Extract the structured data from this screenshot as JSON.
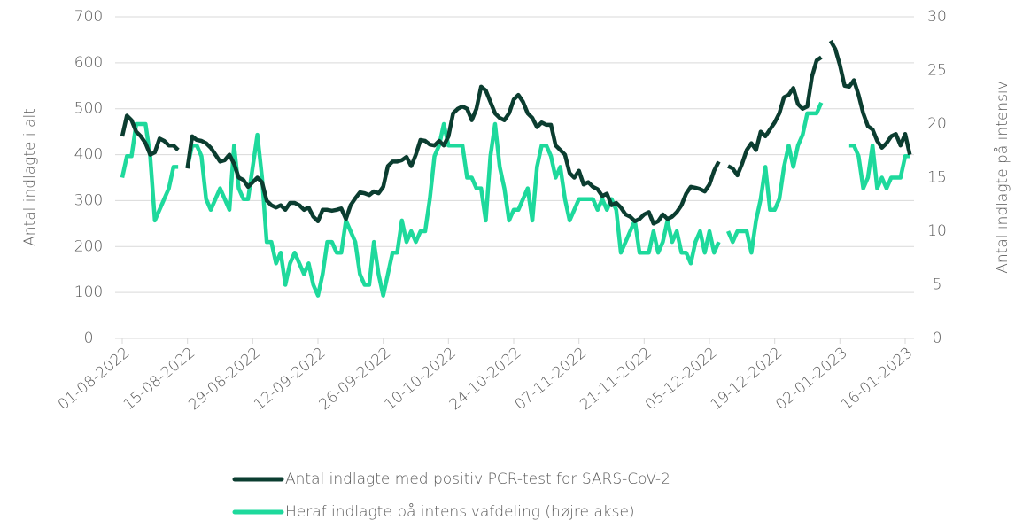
{
  "chart_data": {
    "type": "line",
    "y_label": "Antal indlagte i alt",
    "y2_label": "Antal indlagte på intensiv",
    "categories": [
      "01-08-2022",
      null,
      null,
      null,
      null,
      null,
      null,
      null,
      null,
      null,
      null,
      null,
      null,
      null,
      "15-08-2022",
      null,
      null,
      null,
      null,
      null,
      null,
      null,
      null,
      null,
      null,
      null,
      null,
      null,
      "29-08-2022",
      null,
      null,
      null,
      null,
      null,
      null,
      null,
      null,
      null,
      null,
      null,
      null,
      null,
      "12-09-2022",
      null,
      null,
      null,
      null,
      null,
      null,
      null,
      null,
      null,
      null,
      null,
      null,
      null,
      "26-09-2022",
      null,
      null,
      null,
      null,
      null,
      null,
      null,
      null,
      null,
      null,
      null,
      null,
      null,
      "10-10-2022",
      null,
      null,
      null,
      null,
      null,
      null,
      null,
      null,
      null,
      null,
      null,
      null,
      null,
      "24-10-2022",
      null,
      null,
      null,
      null,
      null,
      null,
      null,
      null,
      null,
      null,
      null,
      null,
      null,
      "07-11-2022",
      null,
      null,
      null,
      null,
      null,
      null,
      null,
      null,
      null,
      null,
      null,
      null,
      null,
      "21-11-2022",
      null,
      null,
      null,
      null,
      null,
      null,
      null,
      null,
      null,
      null,
      null,
      null,
      null,
      "05-12-2022",
      null,
      null,
      null,
      null,
      null,
      null,
      null,
      null,
      null,
      null,
      null,
      null,
      null,
      "19-12-2022",
      null,
      null,
      null,
      null,
      null,
      null,
      null,
      null,
      null,
      null,
      null,
      null,
      null,
      "02-01-2023",
      null,
      null,
      null,
      null,
      null,
      null,
      null,
      null,
      null,
      null,
      null,
      null,
      null,
      "16-01-2023",
      null
    ],
    "series": [
      {
        "name": "Antal indlagte med positiv PCR-test for SARS-CoV-2",
        "color": "#0b3d30",
        "axis": "y",
        "values": [
          440,
          485,
          475,
          450,
          440,
          425,
          400,
          405,
          435,
          430,
          420,
          420,
          410,
          null,
          370,
          440,
          432,
          430,
          425,
          415,
          400,
          385,
          388,
          400,
          380,
          350,
          345,
          330,
          340,
          350,
          340,
          300,
          290,
          285,
          290,
          280,
          295,
          295,
          290,
          280,
          285,
          265,
          255,
          280,
          280,
          278,
          280,
          283,
          260,
          290,
          305,
          318,
          316,
          312,
          320,
          316,
          330,
          375,
          385,
          385,
          388,
          395,
          375,
          400,
          432,
          430,
          422,
          420,
          430,
          420,
          440,
          490,
          500,
          505,
          500,
          475,
          500,
          548,
          540,
          515,
          490,
          480,
          475,
          490,
          520,
          530,
          515,
          490,
          480,
          460,
          470,
          465,
          465,
          420,
          410,
          400,
          360,
          350,
          365,
          335,
          340,
          330,
          325,
          310,
          315,
          290,
          295,
          285,
          270,
          265,
          255,
          260,
          270,
          275,
          250,
          255,
          270,
          260,
          265,
          275,
          290,
          315,
          330,
          328,
          325,
          320,
          335,
          365,
          385,
          null,
          375,
          370,
          355,
          380,
          410,
          425,
          410,
          450,
          440,
          455,
          470,
          490,
          525,
          530,
          545,
          510,
          500,
          505,
          570,
          605,
          612,
          null,
          648,
          630,
          595,
          550,
          548,
          562,
          530,
          490,
          462,
          455,
          430,
          415,
          425,
          440,
          445,
          420,
          445,
          400
        ]
      },
      {
        "name": "Heraf indlagte på intensivafdeling (højre akse)",
        "color": "#1ed99c",
        "axis": "y2",
        "values": [
          15,
          17,
          17,
          20,
          20,
          20,
          17,
          11,
          12,
          13,
          14,
          16,
          16,
          null,
          16,
          18,
          18,
          17,
          13,
          12,
          13,
          14,
          13,
          12,
          18,
          14,
          13,
          13,
          16,
          19,
          15,
          9,
          9,
          7,
          8,
          5,
          7,
          8,
          7,
          6,
          7,
          5,
          4,
          6,
          9,
          9,
          8,
          8,
          11,
          10,
          9,
          6,
          5,
          5,
          9,
          6,
          4,
          6,
          8,
          8,
          11,
          9,
          10,
          9,
          10,
          10,
          13,
          17,
          18,
          20,
          18,
          18,
          18,
          18,
          15,
          15,
          14,
          14,
          11,
          17,
          20,
          16,
          14,
          11,
          12,
          12,
          13,
          14,
          11,
          16,
          18,
          18,
          17,
          15,
          16,
          13,
          11,
          12,
          13,
          13,
          13,
          13,
          12,
          13,
          12,
          13,
          12,
          8,
          9,
          10,
          11,
          8,
          8,
          8,
          10,
          8,
          9,
          11,
          9,
          10,
          8,
          8,
          7,
          9,
          10,
          8,
          10,
          8,
          9,
          null,
          10,
          9,
          10,
          10,
          10,
          8,
          11,
          13,
          16,
          12,
          12,
          13,
          16,
          18,
          16,
          18,
          19,
          21,
          21,
          21,
          22,
          null,
          null,
          null,
          null,
          null,
          18,
          18,
          17,
          14,
          15,
          18,
          14,
          15,
          14,
          15,
          15,
          15,
          17,
          17
        ]
      }
    ],
    "ylim": [
      0,
      700
    ],
    "yticks": [
      0,
      100,
      200,
      300,
      400,
      500,
      600,
      700
    ],
    "y2lim": [
      0,
      30
    ],
    "y2ticks": [
      0,
      5,
      10,
      15,
      20,
      25,
      30
    ],
    "grid": true,
    "legend": "bottom"
  }
}
